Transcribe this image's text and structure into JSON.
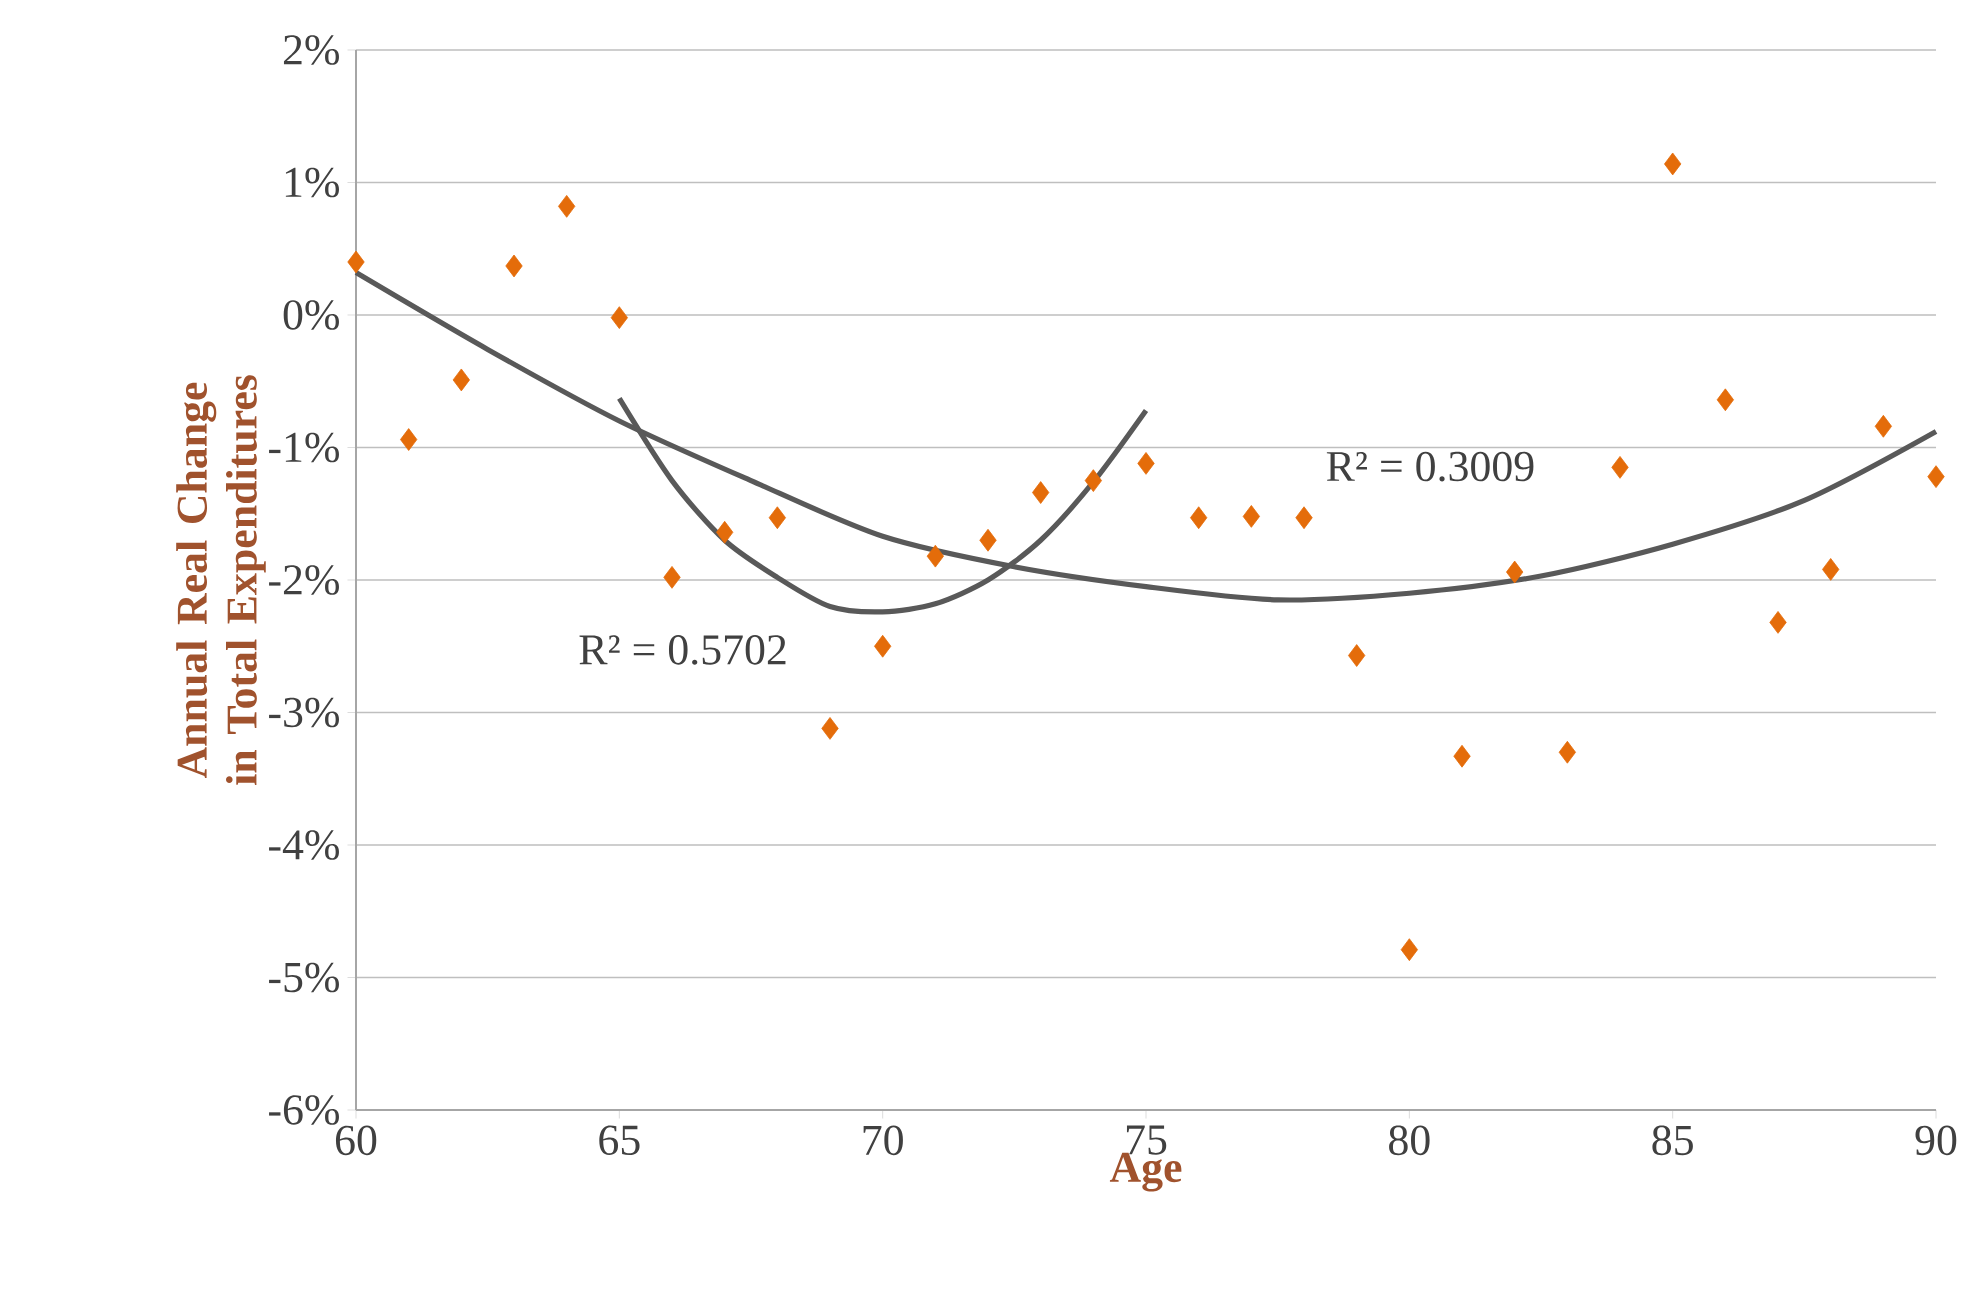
{
  "chart_data": {
    "type": "scatter",
    "xlabel": "Age",
    "ylabel": "Annual Real Change in Total Expenditures",
    "xlim": [
      60,
      90
    ],
    "xticks": [
      60,
      65,
      70,
      75,
      80,
      85,
      90
    ],
    "ylim": [
      -6,
      2
    ],
    "yticks": [
      {
        "value": -6,
        "label": "-6%"
      },
      {
        "value": -5,
        "label": "-5%"
      },
      {
        "value": -4,
        "label": "-4%"
      },
      {
        "value": -3,
        "label": "-3%"
      },
      {
        "value": -2,
        "label": "-2%"
      },
      {
        "value": -1,
        "label": "-1%"
      },
      {
        "value": 0,
        "label": "0%"
      },
      {
        "value": 1,
        "label": "1%"
      },
      {
        "value": 2,
        "label": "2%"
      }
    ],
    "grid": "y",
    "series": [
      {
        "marker": "diamond",
        "color": "#e46c0a",
        "x": [
          60,
          61,
          62,
          63,
          64,
          65,
          66,
          67,
          68,
          69,
          70,
          71,
          72,
          73,
          74,
          75,
          76,
          77,
          78,
          79,
          80,
          81,
          82,
          83,
          84,
          85,
          86,
          87,
          88,
          89,
          90
        ],
        "values": [
          0.4,
          -0.94,
          -0.49,
          0.37,
          0.82,
          -0.02,
          -1.98,
          -1.64,
          -1.53,
          -3.12,
          -2.5,
          -1.82,
          -1.7,
          -1.34,
          -1.25,
          -1.12,
          -1.53,
          -1.52,
          -1.53,
          -2.57,
          -4.79,
          -3.33,
          -1.94,
          -3.3,
          -1.15,
          1.14,
          -0.64,
          -2.32,
          -1.92,
          -0.84,
          -1.22
        ]
      },
      {
        "type": "line",
        "marker": "none",
        "color": "#595959",
        "x": [
          60,
          62.5,
          65,
          67.5,
          70,
          72.5,
          75,
          77.5,
          80,
          82.5,
          85,
          87.5,
          90
        ],
        "values": [
          0.32,
          -0.26,
          -0.8,
          -1.25,
          -1.67,
          -1.9,
          -2.05,
          -2.15,
          -2.1,
          -1.97,
          -1.73,
          -1.4,
          -0.88
        ]
      },
      {
        "type": "line",
        "marker": "none",
        "color": "#595959",
        "x": [
          65,
          66,
          67,
          68,
          69,
          70,
          71,
          72,
          73,
          74,
          75
        ],
        "values": [
          -0.63,
          -1.25,
          -1.7,
          -1.98,
          -2.2,
          -2.24,
          -2.18,
          -2.0,
          -1.7,
          -1.26,
          -0.72
        ]
      }
    ],
    "annotations": [
      "R² = 0.3009",
      "R² = 0.5702"
    ]
  }
}
